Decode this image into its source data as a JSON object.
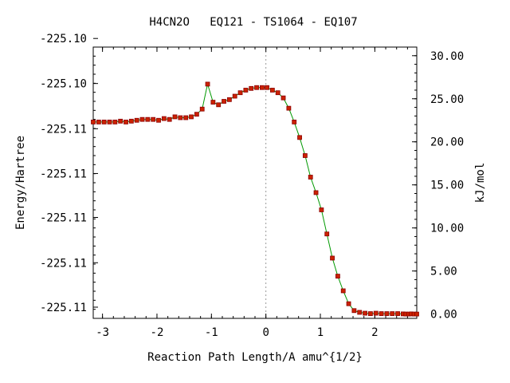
{
  "chart_data": {
    "type": "line",
    "title": "H4CN2O   EQ121 - TS1064 - EQ107",
    "xlabel": "Reaction Path Length/A amu^{1/2}",
    "ylabel_left": "Energy/Hartree",
    "ylabel_right": "kJ/mol",
    "xlim": [
      -3.17,
      2.77
    ],
    "ylim_right": [
      -0.5,
      31.0
    ],
    "x_ticks": [
      -3,
      -2,
      -1,
      0,
      1,
      2
    ],
    "x_tick_labels": [
      "-3",
      "-2",
      "-1",
      "0",
      "1",
      "2"
    ],
    "left_ticks_kjmol": [
      0.8,
      5.96,
      11.22,
      16.32,
      21.52,
      26.77,
      32.0
    ],
    "left_tick_labels": [
      "-225.11",
      "-225.11",
      "-225.11",
      "-225.11",
      "-225.11",
      "-225.10",
      "-225.10"
    ],
    "right_ticks": [
      0,
      5,
      10,
      15,
      20,
      25,
      30
    ],
    "right_tick_labels": [
      "0.00",
      "5.00",
      "10.00",
      "15.00",
      "20.00",
      "25.00",
      "30.00"
    ],
    "ts_marker_x": 0,
    "grid": false,
    "colors": {
      "line": "#009900",
      "marker": "#cc2200",
      "marker_edge": "#8b0000",
      "axis": "#000000",
      "ts_line": "#999999"
    },
    "series": [
      {
        "x": [
          -3.17,
          -3.07,
          -2.97,
          -2.87,
          -2.77,
          -2.67,
          -2.57,
          -2.47,
          -2.37,
          -2.27,
          -2.17,
          -2.07,
          -1.97,
          -1.87,
          -1.77,
          -1.67,
          -1.57,
          -1.47,
          -1.37,
          -1.27,
          -1.17,
          -1.07,
          -0.97,
          -0.87,
          -0.77,
          -0.67,
          -0.57,
          -0.47,
          -0.37,
          -0.27,
          -0.17,
          -0.07,
          0.02,
          0.12,
          0.22,
          0.32,
          0.42,
          0.52,
          0.62,
          0.72,
          0.82,
          0.92,
          1.02,
          1.12,
          1.22,
          1.32,
          1.42,
          1.52,
          1.62,
          1.72,
          1.82,
          1.92,
          2.02,
          2.12,
          2.22,
          2.32,
          2.42,
          2.52,
          2.57,
          2.62,
          2.67,
          2.72,
          2.77
        ],
        "y": [
          22.3,
          22.3,
          22.3,
          22.3,
          22.3,
          22.4,
          22.3,
          22.4,
          22.5,
          22.6,
          22.6,
          22.6,
          22.5,
          22.7,
          22.6,
          22.9,
          22.8,
          22.8,
          22.9,
          23.2,
          23.8,
          26.7,
          24.6,
          24.3,
          24.7,
          24.9,
          25.3,
          25.7,
          26.0,
          26.2,
          26.3,
          26.3,
          26.3,
          26.0,
          25.7,
          25.1,
          23.9,
          22.3,
          20.5,
          18.4,
          15.9,
          14.1,
          12.1,
          9.3,
          6.5,
          4.4,
          2.7,
          1.2,
          0.4,
          0.2,
          0.1,
          0.05,
          0.1,
          0.05,
          0.05,
          0.05,
          0.05,
          0.02,
          0.0,
          0.0,
          0.02,
          0.0,
          0.0
        ]
      }
    ]
  }
}
